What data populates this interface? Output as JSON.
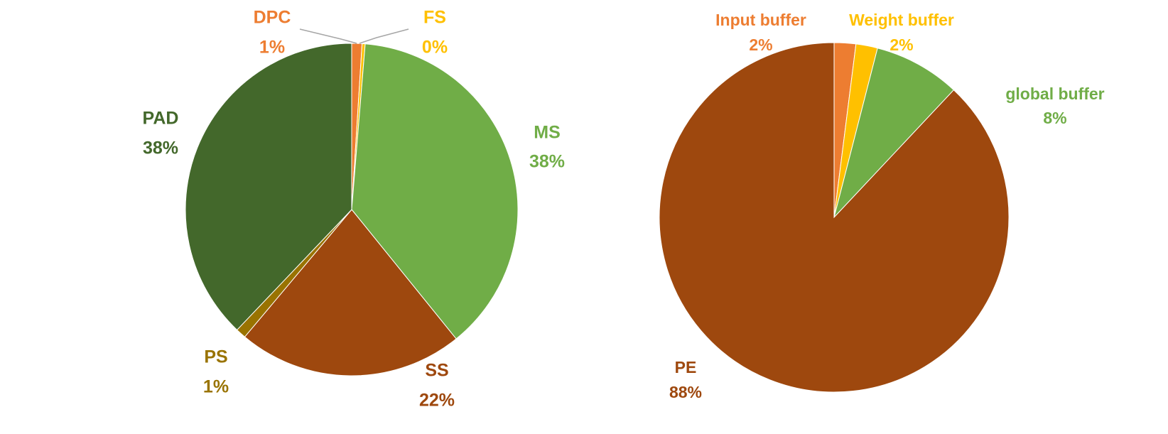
{
  "chart_data": [
    {
      "type": "pie",
      "title": "",
      "slices": [
        {
          "label": "DPC",
          "value": 1,
          "percent_text": "1%",
          "color": "#ED7D31"
        },
        {
          "label": "FS",
          "value": 0.3,
          "percent_text": "0%",
          "color": "#FFC000"
        },
        {
          "label": "MS",
          "value": 38,
          "percent_text": "38%",
          "color": "#70AD47"
        },
        {
          "label": "SS",
          "value": 22,
          "percent_text": "22%",
          "color": "#9E480E"
        },
        {
          "label": "PS",
          "value": 1,
          "percent_text": "1%",
          "color": "#997300"
        },
        {
          "label": "PAD",
          "value": 38,
          "percent_text": "38%",
          "color": "#43682B"
        }
      ],
      "start_angle_deg": 0,
      "direction": "clockwise"
    },
    {
      "type": "pie",
      "title": "",
      "slices": [
        {
          "label": "Input buffer",
          "value": 2,
          "percent_text": "2%",
          "color": "#ED7D31"
        },
        {
          "label": "Weight buffer",
          "value": 2,
          "percent_text": "2%",
          "color": "#FFC000"
        },
        {
          "label": "global buffer",
          "value": 8,
          "percent_text": "8%",
          "color": "#70AD47"
        },
        {
          "label": "PE",
          "value": 88,
          "percent_text": "88%",
          "color": "#9E480E"
        }
      ],
      "start_angle_deg": 0,
      "direction": "clockwise"
    }
  ]
}
